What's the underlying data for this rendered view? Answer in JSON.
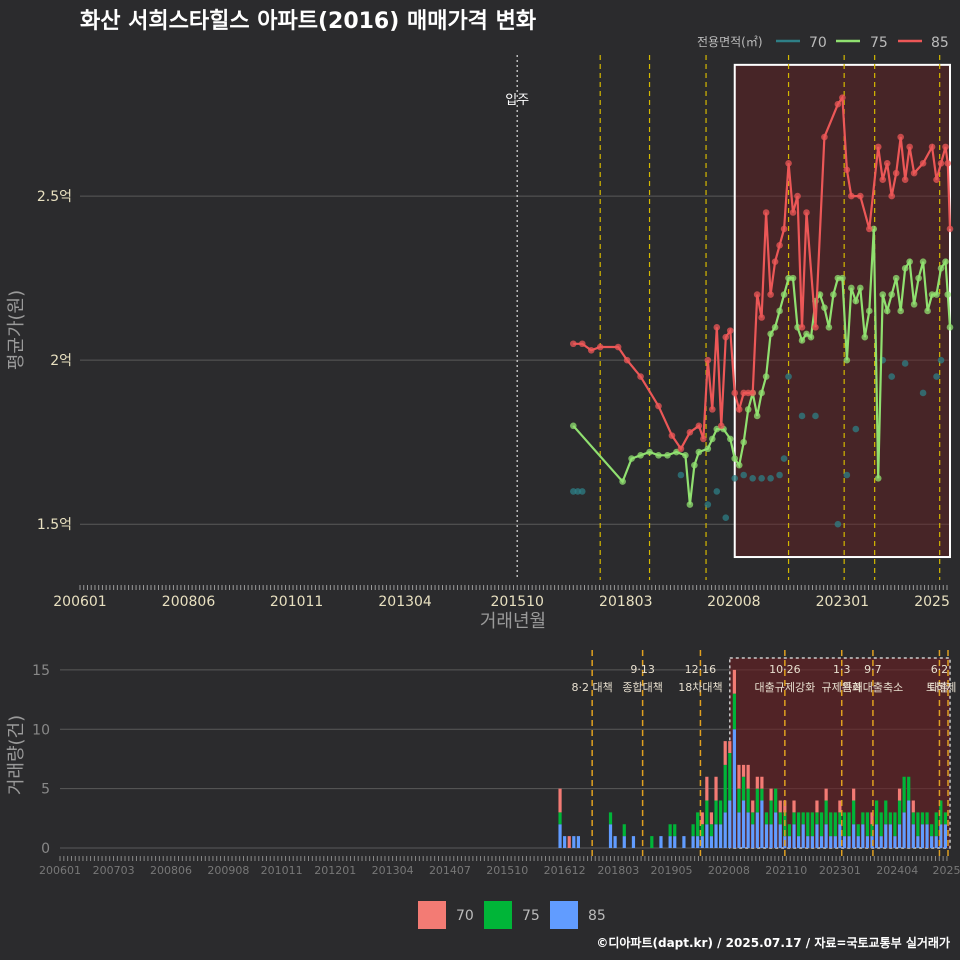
{
  "title": "화산 서희스타힐스 아파트(2016) 매매가격 변화",
  "footer": "©디아파트(dapt.kr) / 2025.07.17 / 자료=국토교통부 실거래가",
  "legend_top": {
    "title": "전용면적(㎡)",
    "items": [
      "70",
      "75",
      "85"
    ]
  },
  "legend_bottom": {
    "items": [
      "70",
      "75",
      "85"
    ]
  },
  "colors": {
    "s70": "#2e7f86",
    "s75": "#90e070",
    "s85": "#ec5757",
    "b70": "#f37b74",
    "b75": "#00b538",
    "b85": "#619cff",
    "policy": "#d4b800",
    "policy2": "#e0a020",
    "box": "#ffffff",
    "shade": "#6b1e22"
  },
  "chart_data": [
    {
      "type": "line",
      "title": "화산 서희스타힐스 아파트(2016) 매매가격 변화",
      "xlabel": "거래년월",
      "ylabel": "평균가(원)",
      "ylim": [
        1.33,
        2.93
      ],
      "xlim": [
        2006.0,
        2025.4
      ],
      "yticks": [
        1.5,
        2.0,
        2.5
      ],
      "ytick_labels": [
        "1.5억",
        "2억",
        "2.5억"
      ],
      "xtick_values": [
        2006.0,
        2008.42,
        2010.83,
        2013.25,
        2015.75,
        2018.17,
        2020.58,
        2023.0,
        2025.0
      ],
      "xtick_labels": [
        "200601",
        "200806",
        "201011",
        "201304",
        "201510",
        "201803",
        "202008",
        "202301",
        "2025"
      ],
      "move_in": {
        "x": 2015.75,
        "label": "입주"
      },
      "policy_lines": [
        2017.6,
        2018.7,
        2019.96,
        2021.8,
        2023.04,
        2023.72,
        2025.17,
        2025.5
      ],
      "highlight": {
        "x": [
          2020.6,
          2025.4
        ],
        "y": [
          1.4,
          2.9
        ]
      },
      "series": [
        {
          "name": "70",
          "x": [
            2017.0,
            2017.1,
            2017.2,
            2019.4,
            2020.0,
            2020.2,
            2020.4,
            2020.6,
            2020.8,
            2021.0,
            2021.2,
            2021.4,
            2021.6,
            2021.7,
            2021.8,
            2022.1,
            2022.4,
            2022.9,
            2023.1,
            2023.3,
            2023.9,
            2024.1,
            2024.4,
            2024.8,
            2025.1,
            2025.2
          ],
          "values": [
            1.6,
            1.6,
            1.6,
            1.65,
            1.56,
            1.6,
            1.52,
            1.64,
            1.65,
            1.64,
            1.64,
            1.64,
            1.65,
            1.7,
            1.95,
            1.83,
            1.83,
            1.5,
            1.65,
            1.79,
            2.0,
            1.95,
            1.99,
            1.9,
            1.95,
            2.0
          ]
        },
        {
          "name": "75",
          "x": [
            2017.0,
            2018.1,
            2018.3,
            2018.5,
            2018.7,
            2018.9,
            2019.1,
            2019.3,
            2019.5,
            2019.6,
            2019.7,
            2019.8,
            2020.0,
            2020.1,
            2020.2,
            2020.35,
            2020.5,
            2020.6,
            2020.7,
            2020.8,
            2020.9,
            2021.0,
            2021.1,
            2021.2,
            2021.3,
            2021.4,
            2021.5,
            2021.6,
            2021.7,
            2021.8,
            2021.9,
            2022.0,
            2022.1,
            2022.2,
            2022.3,
            2022.4,
            2022.5,
            2022.6,
            2022.7,
            2022.8,
            2022.9,
            2023.0,
            2023.1,
            2023.2,
            2023.3,
            2023.4,
            2023.5,
            2023.6,
            2023.7,
            2023.8,
            2023.9,
            2024.0,
            2024.1,
            2024.2,
            2024.3,
            2024.4,
            2024.5,
            2024.6,
            2024.7,
            2024.8,
            2024.9,
            2025.0,
            2025.1,
            2025.2,
            2025.3,
            2025.35,
            2025.4
          ],
          "values": [
            1.8,
            1.63,
            1.7,
            1.71,
            1.72,
            1.71,
            1.71,
            1.72,
            1.71,
            1.56,
            1.68,
            1.72,
            1.73,
            1.76,
            1.79,
            1.79,
            1.76,
            1.7,
            1.68,
            1.75,
            1.85,
            1.9,
            1.83,
            1.9,
            1.95,
            2.08,
            2.1,
            2.15,
            2.2,
            2.25,
            2.25,
            2.1,
            2.06,
            2.08,
            2.07,
            2.18,
            2.2,
            2.16,
            2.1,
            2.2,
            2.25,
            2.25,
            2.0,
            2.22,
            2.18,
            2.22,
            2.07,
            2.15,
            2.4,
            1.64,
            2.2,
            2.15,
            2.2,
            2.25,
            2.15,
            2.28,
            2.3,
            2.17,
            2.25,
            2.3,
            2.15,
            2.2,
            2.2,
            2.28,
            2.3,
            2.2,
            2.1
          ]
        },
        {
          "name": "85",
          "x": [
            2017.0,
            2017.2,
            2017.4,
            2017.6,
            2018.0,
            2018.2,
            2018.5,
            2018.9,
            2019.2,
            2019.4,
            2019.6,
            2019.8,
            2019.9,
            2020.0,
            2020.1,
            2020.2,
            2020.3,
            2020.4,
            2020.5,
            2020.6,
            2020.7,
            2020.8,
            2020.9,
            2021.0,
            2021.1,
            2021.2,
            2021.3,
            2021.4,
            2021.5,
            2021.6,
            2021.7,
            2021.8,
            2021.9,
            2022.0,
            2022.1,
            2022.2,
            2022.4,
            2022.6,
            2022.9,
            2023.0,
            2023.1,
            2023.2,
            2023.4,
            2023.6,
            2023.8,
            2023.9,
            2024.0,
            2024.1,
            2024.2,
            2024.3,
            2024.4,
            2024.5,
            2024.6,
            2024.8,
            2025.0,
            2025.1,
            2025.2,
            2025.3,
            2025.35,
            2025.4
          ],
          "values": [
            2.05,
            2.05,
            2.03,
            2.04,
            2.04,
            2.0,
            1.95,
            1.86,
            1.77,
            1.73,
            1.78,
            1.8,
            1.76,
            2.0,
            1.85,
            2.1,
            1.8,
            2.07,
            2.09,
            1.9,
            1.85,
            1.9,
            1.9,
            1.9,
            2.2,
            2.13,
            2.45,
            2.2,
            2.3,
            2.35,
            2.4,
            2.6,
            2.45,
            2.5,
            2.1,
            2.45,
            2.1,
            2.68,
            2.78,
            2.8,
            2.58,
            2.5,
            2.5,
            2.4,
            2.65,
            2.55,
            2.6,
            2.5,
            2.57,
            2.68,
            2.55,
            2.65,
            2.57,
            2.6,
            2.65,
            2.55,
            2.6,
            2.65,
            2.6,
            2.4
          ]
        }
      ]
    },
    {
      "type": "bar",
      "ylabel": "거래량(건)",
      "ylim": [
        0,
        16
      ],
      "yticks": [
        0,
        5,
        10,
        15
      ],
      "xlim": [
        2006.0,
        2025.4
      ],
      "xtick_values": [
        2006.0,
        2007.17,
        2008.42,
        2009.67,
        2010.83,
        2012.0,
        2013.25,
        2014.5,
        2015.75,
        2017.0,
        2018.17,
        2019.33,
        2020.58,
        2021.83,
        2023.0,
        2024.25,
        2025.4
      ],
      "xtick_labels": [
        "200601",
        "200703",
        "200806",
        "200908",
        "201011",
        "201201",
        "201304",
        "201407",
        "201510",
        "201612",
        "201803",
        "201905",
        "202008",
        "202110",
        "202301",
        "202404",
        "20250"
      ],
      "highlight": {
        "x": [
          2020.6,
          2025.4
        ],
        "y": [
          0,
          16
        ]
      },
      "policy_lines": [
        {
          "x": 2017.6,
          "date": "",
          "label": "8·2 대책"
        },
        {
          "x": 2018.7,
          "date": "9·13",
          "label": "종합대책"
        },
        {
          "x": 2019.96,
          "date": "12·16",
          "label": "18차대책"
        },
        {
          "x": 2021.8,
          "date": "10·26",
          "label": "대출규제강화"
        },
        {
          "x": 2023.04,
          "date": "1·3",
          "label": "규제완화"
        },
        {
          "x": 2023.72,
          "date": "9·7",
          "label": "특례대출축소"
        },
        {
          "x": 2025.17,
          "date": "6·2",
          "label": "대출"
        },
        {
          "x": 2025.5,
          "date": "",
          "label": "토허제 해"
        }
      ],
      "x": [
        2016.9,
        2017.0,
        2017.1,
        2017.2,
        2017.3,
        2018.0,
        2018.1,
        2018.3,
        2018.5,
        2018.7,
        2018.9,
        2019.1,
        2019.3,
        2019.4,
        2019.6,
        2019.8,
        2019.9,
        2020.0,
        2020.1,
        2020.2,
        2020.3,
        2020.4,
        2020.5,
        2020.6,
        2020.7,
        2020.8,
        2020.9,
        2021.0,
        2021.1,
        2021.2,
        2021.3,
        2021.4,
        2021.5,
        2021.6,
        2021.7,
        2021.8,
        2021.9,
        2022.0,
        2022.1,
        2022.2,
        2022.3,
        2022.4,
        2022.5,
        2022.6,
        2022.7,
        2022.8,
        2022.9,
        2023.0,
        2023.1,
        2023.2,
        2023.3,
        2023.4,
        2023.5,
        2023.6,
        2023.7,
        2023.8,
        2023.9,
        2024.0,
        2024.1,
        2024.2,
        2024.3,
        2024.4,
        2024.5,
        2024.6,
        2024.7,
        2024.8,
        2024.9,
        2025.0,
        2025.1,
        2025.2,
        2025.3
      ],
      "series": [
        {
          "name": "70",
          "values": [
            2,
            0,
            1,
            0,
            0,
            0,
            0,
            0,
            0,
            0,
            0,
            0,
            0,
            0,
            0,
            0,
            0,
            1,
            2,
            1,
            2,
            0,
            2,
            1,
            2,
            2,
            1,
            2,
            1,
            1,
            1,
            0,
            1,
            0,
            1,
            1,
            0,
            1,
            0,
            0,
            0,
            0,
            1,
            0,
            1,
            0,
            0,
            1,
            0,
            0,
            1,
            0,
            0,
            0,
            1,
            0,
            0,
            0,
            0,
            0,
            1,
            0,
            0,
            1,
            0,
            0,
            0,
            0,
            0,
            0,
            0
          ]
        },
        {
          "name": "75",
          "values": [
            1,
            0,
            0,
            0,
            0,
            1,
            0,
            1,
            0,
            0,
            1,
            0,
            1,
            1,
            0,
            1,
            2,
            1,
            2,
            1,
            2,
            2,
            4,
            4,
            3,
            2,
            2,
            2,
            1,
            2,
            1,
            1,
            2,
            2,
            1,
            2,
            1,
            1,
            2,
            1,
            2,
            2,
            1,
            2,
            2,
            2,
            2,
            1,
            2,
            2,
            2,
            1,
            1,
            2,
            1,
            2,
            2,
            2,
            1,
            2,
            2,
            3,
            2,
            1,
            2,
            1,
            1,
            1,
            2,
            2,
            1
          ]
        },
        {
          "name": "85",
          "values": [
            2,
            1,
            0,
            1,
            1,
            2,
            1,
            1,
            1,
            0,
            0,
            1,
            1,
            1,
            1,
            1,
            1,
            1,
            2,
            1,
            2,
            2,
            3,
            4,
            10,
            3,
            4,
            3,
            2,
            3,
            4,
            2,
            2,
            3,
            2,
            1,
            1,
            2,
            1,
            2,
            1,
            1,
            2,
            1,
            2,
            1,
            1,
            2,
            1,
            1,
            2,
            1,
            2,
            1,
            1,
            2,
            1,
            2,
            2,
            1,
            2,
            3,
            4,
            2,
            1,
            2,
            2,
            1,
            1,
            2,
            2
          ]
        }
      ]
    }
  ]
}
